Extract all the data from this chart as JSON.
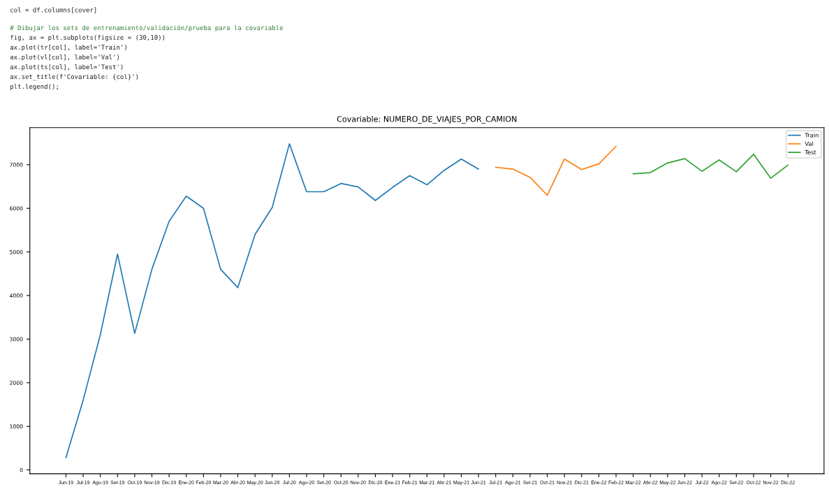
{
  "chart_data": {
    "type": "line",
    "title": "Covariable: NUMERO_DE_VIAJES_POR_CAMION",
    "annotations": [
      "col = df.columns[cover]",
      "# Dibujar los sets de entrenamiento/validación/prueba para la covariable",
      "fig, ax = plt.subplots(figsize = (30,10))",
      "ax.plot(tr[col], label='Train')",
      "ax.plot(vl[col], label='Val')",
      "ax.plot(ts[col], label='Test')",
      "ax.set_title(f'Covariable: {col}')",
      "plt.legend();"
    ],
    "categories": [
      "Jun-19",
      "Jul-19",
      "Ago-19",
      "Set-19",
      "Oct-19",
      "Nov-19",
      "Dic-19",
      "Ene-20",
      "Feb-20",
      "Mar-20",
      "Abr-20",
      "May-20",
      "Jun-20",
      "Jul-20",
      "Ago-20",
      "Set-20",
      "Oct-20",
      "Nov-20",
      "Dic-20",
      "Ene-21",
      "Feb-21",
      "Mar-21",
      "Abr-21",
      "May-21",
      "Jun-21",
      "Jul-21",
      "Ago-21",
      "Set-21",
      "Oct-21",
      "Nov-21",
      "Dic-21",
      "Ene-22",
      "Feb-22",
      "Mar-22",
      "Abr-22",
      "May-22",
      "Jun-22",
      "Jul-22",
      "Ago-22",
      "Set-22",
      "Oct-22",
      "Nov-22",
      "Dic-22"
    ],
    "series": [
      {
        "name": "Train",
        "color": "#1f77b4",
        "values": [
          280,
          1600,
          3100,
          4950,
          3130,
          4600,
          5700,
          6280,
          6000,
          4600,
          4180,
          5400,
          6020,
          7480,
          6380,
          6380,
          6570,
          6490,
          6180,
          6480,
          6750,
          6540,
          6870,
          7130,
          6900,
          null,
          null,
          null,
          null,
          null,
          null,
          null,
          null,
          null,
          null,
          null,
          null,
          null,
          null,
          null,
          null,
          null,
          null
        ]
      },
      {
        "name": "Val",
        "color": "#ff7f0e",
        "values": [
          null,
          null,
          null,
          null,
          null,
          null,
          null,
          null,
          null,
          null,
          null,
          null,
          null,
          null,
          null,
          null,
          null,
          null,
          null,
          null,
          null,
          null,
          null,
          null,
          null,
          6940,
          6900,
          6710,
          6300,
          7130,
          6890,
          7020,
          7420,
          null,
          null,
          null,
          null,
          null,
          null,
          null,
          null,
          null,
          null
        ]
      },
      {
        "name": "Test",
        "color": "#2ca02c",
        "values": [
          null,
          null,
          null,
          null,
          null,
          null,
          null,
          null,
          null,
          null,
          null,
          null,
          null,
          null,
          null,
          null,
          null,
          null,
          null,
          null,
          null,
          null,
          null,
          null,
          null,
          null,
          null,
          null,
          null,
          null,
          null,
          null,
          null,
          6790,
          6820,
          7040,
          7140,
          6850,
          7110,
          6840,
          7240,
          6690,
          6990
        ]
      }
    ],
    "ylim": [
      -90,
      7850
    ],
    "yticks": [
      0,
      1000,
      2000,
      3000,
      4000,
      5000,
      6000,
      7000
    ],
    "grid": false,
    "legend": "top right"
  }
}
